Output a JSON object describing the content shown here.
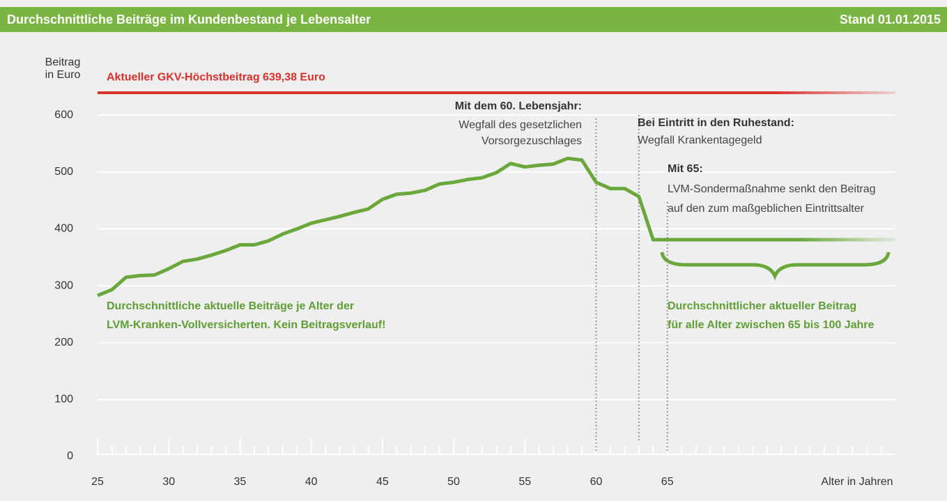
{
  "chart_data": {
    "type": "line",
    "title": "Durchschnittliche Beiträge im Kundenbestand je Lebensalter",
    "subtitle": "Stand 01.01.2015",
    "y_label": [
      "Beitrag",
      "in Euro"
    ],
    "x_label": "Alter in Jahren",
    "x": [
      25,
      26,
      27,
      28,
      29,
      30,
      31,
      32,
      33,
      34,
      35,
      36,
      37,
      38,
      39,
      40,
      41,
      42,
      43,
      44,
      45,
      46,
      47,
      48,
      49,
      50,
      51,
      52,
      53,
      54,
      55,
      56,
      57,
      58,
      59,
      60,
      61,
      62,
      63,
      64,
      65,
      81
    ],
    "series": [
      {
        "name": "Durchschnittliche Beiträge",
        "color": "#6aa83c",
        "values": [
          283,
          293,
          315,
          318,
          319,
          330,
          343,
          347,
          354,
          362,
          372,
          372,
          379,
          391,
          400,
          410,
          416,
          422,
          429,
          435,
          452,
          461,
          463,
          468,
          479,
          482,
          487,
          490,
          499,
          515,
          509,
          512,
          514,
          524,
          521,
          482,
          471,
          471,
          457,
          381,
          381,
          381
        ]
      }
    ],
    "xlim": [
      25,
      81.5
    ],
    "ylim": [
      0,
      680
    ],
    "xticks": [
      25,
      30,
      35,
      40,
      45,
      50,
      55,
      60,
      65
    ],
    "xminorticks": [
      26,
      27,
      28,
      29,
      30,
      31,
      32,
      33,
      34,
      35,
      36,
      37,
      38,
      39,
      40,
      41,
      42,
      43,
      44,
      45,
      46,
      47,
      48,
      49,
      50,
      51,
      52,
      53,
      54,
      55,
      56,
      57,
      58,
      59,
      60,
      61,
      62,
      63,
      64,
      65,
      66,
      67,
      68,
      69,
      70,
      71,
      72,
      73,
      74,
      75,
      76,
      77,
      78,
      79,
      80
    ],
    "yticks": [
      0,
      100,
      200,
      300,
      400,
      500,
      600
    ],
    "grid": true,
    "reference_line": {
      "label": "Aktueller GKV-Höchstbeitrag 639,38 Euro",
      "value": 639.38,
      "color": "#d9302c"
    },
    "annotations": [
      {
        "title": "Mit dem 60. Lebensjahr:",
        "lines": [
          "Wegfall des gesetzlichen",
          "Vorsorgezuschlages"
        ],
        "x": 60
      },
      {
        "title": "Bei Eintritt in den Ruhestand:",
        "lines": [
          "Wegfall Krankentagegeld"
        ],
        "x": 63
      },
      {
        "title": "Mit 65:",
        "lines": [
          "LVM-Sondermaßnahme senkt den Beitrag",
          "auf den zum maßgeblichen Eintrittsalter"
        ],
        "x": 65
      }
    ],
    "notes": [
      {
        "lines": [
          "Durchschnittliche aktuelle Beiträge je Alter der",
          "LVM-Kranken-Vollversicherten. Kein Beitragsverlauf!"
        ]
      },
      {
        "lines": [
          "Durchschnittlicher aktueller Beitrag",
          "für alle Alter zwischen 65 bis 100 Jahre"
        ]
      }
    ]
  }
}
